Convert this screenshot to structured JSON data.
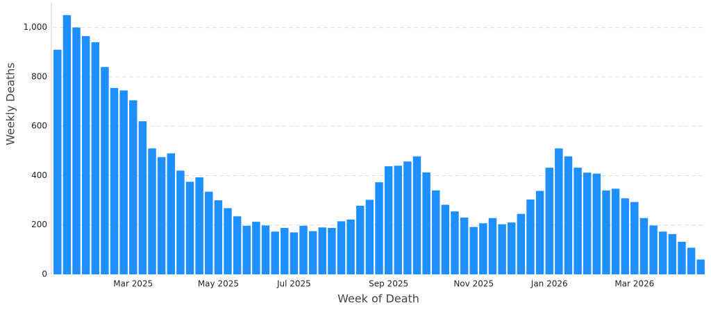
{
  "chart_data": {
    "type": "bar",
    "x_label": "Week of Death",
    "y_label": "Weekly Deaths",
    "categories": [
      null,
      null,
      null,
      null,
      null,
      null,
      null,
      null,
      "Mar 2025",
      null,
      null,
      null,
      null,
      null,
      null,
      null,
      null,
      "May 2025",
      null,
      null,
      null,
      null,
      null,
      null,
      null,
      "Jul 2025",
      null,
      null,
      null,
      null,
      null,
      null,
      null,
      null,
      null,
      "Sep 2025",
      null,
      null,
      null,
      null,
      null,
      null,
      null,
      null,
      "Nov 2025",
      null,
      null,
      null,
      null,
      null,
      null,
      null,
      "Jan 2026",
      null,
      null,
      null,
      null,
      null,
      null,
      null,
      null,
      "Mar 2026",
      null,
      null,
      null,
      null,
      null,
      null,
      null
    ],
    "values": [
      910,
      1050,
      1000,
      965,
      940,
      840,
      755,
      745,
      705,
      620,
      510,
      475,
      490,
      420,
      375,
      393,
      335,
      300,
      268,
      235,
      197,
      213,
      198,
      173,
      188,
      170,
      197,
      175,
      190,
      188,
      215,
      222,
      278,
      302,
      373,
      438,
      440,
      457,
      478,
      413,
      340,
      282,
      255,
      230,
      192,
      207,
      228,
      203,
      210,
      245,
      303,
      338,
      432,
      510,
      478,
      432,
      412,
      408,
      340,
      347,
      308,
      293,
      228,
      198,
      173,
      163,
      132,
      108,
      60
    ],
    "color": "#1e8fff",
    "ylim": [
      0,
      1100
    ],
    "yticks": [
      0,
      200,
      400,
      600,
      800,
      {
        "value": 1000,
        "label": "1,000"
      }
    ],
    "grid": true
  }
}
